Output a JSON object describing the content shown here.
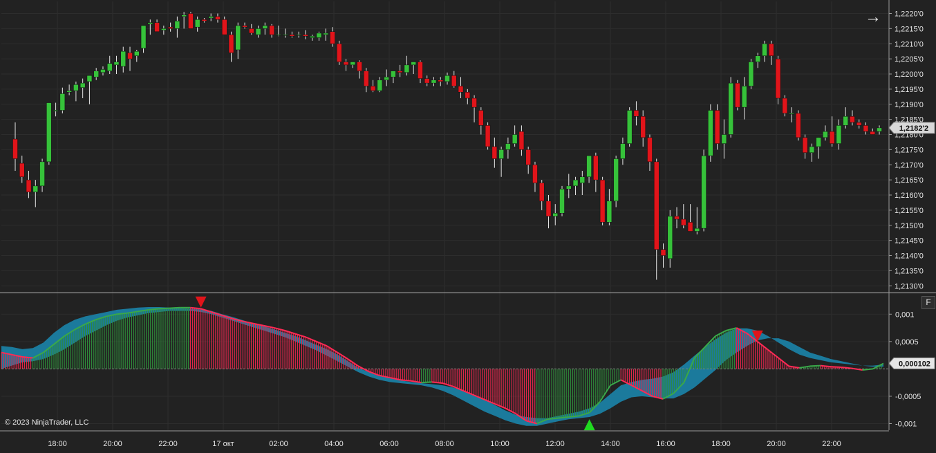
{
  "chart_data": [
    {
      "type": "candlestick",
      "title": "",
      "price_axis_ticks": [
        "1,2130'0",
        "1,2135'0",
        "1,2140'0",
        "1,2145'0",
        "1,2150'0",
        "1,2155'0",
        "1,2160'0",
        "1,2165'0",
        "1,2170'0",
        "1,2175'0",
        "1,2180'0",
        "1,2185'0",
        "1,2190'0",
        "1,2195'0",
        "1,2200'0",
        "1,2205'0",
        "1,2210'0",
        "1,2215'0",
        "1,2220'0"
      ],
      "ylim": [
        1.2128,
        1.2224
      ],
      "last_price_label": "1,2182'2",
      "last_price": 1.21822,
      "time_axis_labels": [
        "18:00",
        "20:00",
        "22:00",
        "17 окт",
        "02:00",
        "04:00",
        "06:00",
        "08:00",
        "10:00",
        "12:00",
        "14:00",
        "16:00",
        "18:00",
        "20:00",
        "22:00"
      ],
      "up_color": "#36c23a",
      "down_color": "#e1141a",
      "ohlc": [
        [
          1.21785,
          1.2184,
          1.2168,
          1.2172
        ],
        [
          1.21705,
          1.2173,
          1.2164,
          1.2166
        ],
        [
          1.2165,
          1.2168,
          1.2159,
          1.2161
        ],
        [
          1.2161,
          1.2165,
          1.2156,
          1.2163
        ],
        [
          1.2163,
          1.2172,
          1.2161,
          1.2171
        ],
        [
          1.2171,
          1.21905,
          1.217,
          1.21905
        ],
        [
          1.2188,
          1.21905,
          1.2186,
          1.2188
        ],
        [
          1.2188,
          1.21955,
          1.2187,
          1.21935
        ],
        [
          1.2194,
          1.21965,
          1.2193,
          1.21945
        ],
        [
          1.21945,
          1.21975,
          1.2191,
          1.21965
        ],
        [
          1.21955,
          1.21985,
          1.2192,
          1.2197
        ],
        [
          1.21975,
          1.21995,
          1.219,
          1.21995
        ],
        [
          1.2199,
          1.2202,
          1.2198,
          1.2201
        ],
        [
          1.22005,
          1.22025,
          1.21995,
          1.22015
        ],
        [
          1.2201,
          1.2206,
          1.22,
          1.22035
        ],
        [
          1.2203,
          1.2206,
          1.22,
          1.2204
        ],
        [
          1.22025,
          1.2209,
          1.22005,
          1.22075
        ],
        [
          1.2207,
          1.2209,
          1.2201,
          1.2205
        ],
        [
          1.2206,
          1.2208,
          1.2204,
          1.22075
        ],
        [
          1.22085,
          1.2216,
          1.2207,
          1.2216
        ],
        [
          1.22165,
          1.2218,
          1.2213,
          1.2217
        ],
        [
          1.2217,
          1.2218,
          1.2214,
          1.2214
        ],
        [
          1.22145,
          1.2216,
          1.2213,
          1.2215
        ],
        [
          1.22155,
          1.2217,
          1.2214,
          1.2215
        ],
        [
          1.2215,
          1.2219,
          1.2212,
          1.22175
        ],
        [
          1.2219,
          1.22205,
          1.2215,
          1.22195
        ],
        [
          1.222,
          1.22205,
          1.2215,
          1.2215
        ],
        [
          1.22155,
          1.2219,
          1.2214,
          1.2218
        ],
        [
          1.2218,
          1.22185,
          1.2217,
          1.22175
        ],
        [
          1.22185,
          1.222,
          1.22175,
          1.2219
        ],
        [
          1.2219,
          1.222,
          1.2217,
          1.2218
        ],
        [
          1.2218,
          1.2219,
          1.2213,
          1.2213
        ],
        [
          1.2213,
          1.2214,
          1.2204,
          1.2207
        ],
        [
          1.2208,
          1.2217,
          1.2205,
          1.2216
        ],
        [
          1.2216,
          1.2217,
          1.2215,
          1.22155
        ],
        [
          1.2215,
          1.22165,
          1.2213,
          1.22135
        ],
        [
          1.2213,
          1.2216,
          1.2212,
          1.2215
        ],
        [
          1.2215,
          1.2217,
          1.2213,
          1.2216
        ],
        [
          1.2216,
          1.22165,
          1.2212,
          1.2213
        ],
        [
          1.2213,
          1.2216,
          1.22125,
          1.2213
        ],
        [
          1.2213,
          1.2215,
          1.2212,
          1.2213
        ],
        [
          1.2213,
          1.2214,
          1.2212,
          1.22125
        ],
        [
          1.2213,
          1.2214,
          1.2212,
          1.2213
        ],
        [
          1.2213,
          1.22145,
          1.22115,
          1.22125
        ],
        [
          1.2212,
          1.2213,
          1.2211,
          1.22125
        ],
        [
          1.2212,
          1.2214,
          1.2211,
          1.22135
        ],
        [
          1.2213,
          1.2215,
          1.2211,
          1.22135
        ],
        [
          1.2214,
          1.22155,
          1.2209,
          1.221
        ],
        [
          1.221,
          1.2211,
          1.2203,
          1.2204
        ],
        [
          1.2204,
          1.2205,
          1.2201,
          1.2203
        ],
        [
          1.2203,
          1.2204,
          1.2202,
          1.2204
        ],
        [
          1.2204,
          1.22045,
          1.21985,
          1.2201
        ],
        [
          1.2201,
          1.2202,
          1.2194,
          1.2196
        ],
        [
          1.2196,
          1.2198,
          1.2194,
          1.21945
        ],
        [
          1.21945,
          1.2199,
          1.2194,
          1.2198
        ],
        [
          1.2198,
          1.22015,
          1.2196,
          1.2199
        ],
        [
          1.2199,
          1.2201,
          1.2197,
          1.2201
        ],
        [
          1.2201,
          1.2203,
          1.2199,
          1.22005
        ],
        [
          1.22005,
          1.2206,
          1.21995,
          1.2203
        ],
        [
          1.2203,
          1.2204,
          1.22,
          1.2204
        ],
        [
          1.2204,
          1.22045,
          1.2197,
          1.21985
        ],
        [
          1.21985,
          1.21995,
          1.2196,
          1.2197
        ],
        [
          1.2197,
          1.2199,
          1.2196,
          1.2198
        ],
        [
          1.2198,
          1.2199,
          1.2196,
          1.21975
        ],
        [
          1.21975,
          1.22005,
          1.21965,
          1.21995
        ],
        [
          1.21995,
          1.2201,
          1.21955,
          1.2196
        ],
        [
          1.2196,
          1.2199,
          1.2192,
          1.2194
        ],
        [
          1.2194,
          1.2195,
          1.219,
          1.2192
        ],
        [
          1.2192,
          1.2193,
          1.2184,
          1.2189
        ],
        [
          1.2188,
          1.2189,
          1.218,
          1.2183
        ],
        [
          1.2183,
          1.2184,
          1.2175,
          1.2176
        ],
        [
          1.2176,
          1.2179,
          1.2169,
          1.2172
        ],
        [
          1.2172,
          1.2176,
          1.2166,
          1.2175
        ],
        [
          1.2175,
          1.2179,
          1.2172,
          1.2177
        ],
        [
          1.2177,
          1.2183,
          1.2176,
          1.218
        ],
        [
          1.2181,
          1.2183,
          1.2173,
          1.2175
        ],
        [
          1.2175,
          1.2176,
          1.2167,
          1.217
        ],
        [
          1.217,
          1.2171,
          1.2161,
          1.2164
        ],
        [
          1.2164,
          1.2165,
          1.2155,
          1.2158
        ],
        [
          1.2158,
          1.216,
          1.2149,
          1.2153
        ],
        [
          1.2153,
          1.2157,
          1.215,
          1.2154
        ],
        [
          1.2154,
          1.2163,
          1.2153,
          1.2162
        ],
        [
          1.2162,
          1.2167,
          1.2159,
          1.2163
        ],
        [
          1.2163,
          1.2166,
          1.216,
          1.2165
        ],
        [
          1.2164,
          1.2168,
          1.216,
          1.2166
        ],
        [
          1.2166,
          1.2173,
          1.2164,
          1.2173
        ],
        [
          1.2173,
          1.2174,
          1.2161,
          1.2165
        ],
        [
          1.2165,
          1.2166,
          1.215,
          1.2151
        ],
        [
          1.2151,
          1.2162,
          1.215,
          1.2158
        ],
        [
          1.2158,
          1.2173,
          1.2156,
          1.2172
        ],
        [
          1.2172,
          1.2179,
          1.217,
          1.2177
        ],
        [
          1.2177,
          1.2189,
          1.2176,
          1.2188
        ],
        [
          1.2188,
          1.2191,
          1.2183,
          1.2186
        ],
        [
          1.2186,
          1.2188,
          1.2176,
          1.2179
        ],
        [
          1.2179,
          1.218,
          1.2168,
          1.2171
        ],
        [
          1.2171,
          1.2172,
          1.2132,
          1.2142
        ],
        [
          1.2142,
          1.2144,
          1.2136,
          1.214
        ],
        [
          1.2139,
          1.2155,
          1.2136,
          1.2153
        ],
        [
          1.2153,
          1.2156,
          1.2149,
          1.2152
        ],
        [
          1.2152,
          1.2157,
          1.2149,
          1.215
        ],
        [
          1.2151,
          1.2157,
          1.2148,
          1.2148
        ],
        [
          1.2148,
          1.2156,
          1.2147,
          1.2149
        ],
        [
          1.2149,
          1.2175,
          1.2148,
          1.2173
        ],
        [
          1.2173,
          1.219,
          1.2171,
          1.2188
        ],
        [
          1.2188,
          1.219,
          1.2175,
          1.2177
        ],
        [
          1.2177,
          1.2185,
          1.2172,
          1.218
        ],
        [
          1.218,
          1.2199,
          1.2179,
          1.2197
        ],
        [
          1.2197,
          1.2198,
          1.2188,
          1.2189
        ],
        [
          1.2189,
          1.2199,
          1.2185,
          1.2196
        ],
        [
          1.2196,
          1.2205,
          1.2195,
          1.2204
        ],
        [
          1.2204,
          1.2207,
          1.2202,
          1.2206
        ],
        [
          1.2206,
          1.2211,
          1.2204,
          1.221
        ],
        [
          1.221,
          1.2211,
          1.2203,
          1.2206
        ],
        [
          1.2205,
          1.2206,
          1.219,
          1.2192
        ],
        [
          1.2192,
          1.2193,
          1.2186,
          1.2187
        ],
        [
          1.2187,
          1.2189,
          1.2184,
          1.2187
        ],
        [
          1.2187,
          1.2188,
          1.2178,
          1.2179
        ],
        [
          1.2179,
          1.218,
          1.2172,
          1.2174
        ],
        [
          1.2174,
          1.2177,
          1.2171,
          1.2176
        ],
        [
          1.2176,
          1.2179,
          1.2172,
          1.2179
        ],
        [
          1.2179,
          1.2183,
          1.2178,
          1.2181
        ],
        [
          1.2181,
          1.2186,
          1.2176,
          1.2177
        ],
        [
          1.2177,
          1.2185,
          1.2175,
          1.2183
        ],
        [
          1.2183,
          1.2189,
          1.2182,
          1.2186
        ],
        [
          1.2186,
          1.2188,
          1.2183,
          1.2184
        ],
        [
          1.2184,
          1.2185,
          1.2182,
          1.2183
        ],
        [
          1.2183,
          1.2184,
          1.218,
          1.2181
        ],
        [
          1.2181,
          1.2182,
          1.218,
          1.218
        ],
        [
          1.2181,
          1.2183,
          1.218,
          1.21822
        ]
      ]
    },
    {
      "type": "oscillator",
      "title": "",
      "axis_ticks": [
        "0,001",
        "0,0005",
        "-0,0005",
        "-0,001"
      ],
      "tick_values": [
        0.001,
        0.0005,
        -0.0005,
        -0.001
      ],
      "ylim": [
        -0.00112,
        0.00137
      ],
      "zero_line": 0,
      "last_value_label": "0,000102",
      "last_value": 0.000102,
      "up_color": "#2e8b3a",
      "down_color": "#e0254a",
      "band_color": "#1b7fa3",
      "signal_markers": [
        {
          "index": 19,
          "direction": "down",
          "value": 0.00112,
          "color": "#e1141a"
        },
        {
          "index": 56,
          "direction": "up",
          "value": -0.00092,
          "color": "#20d820"
        },
        {
          "index": 72,
          "direction": "down",
          "value": 0.0005,
          "color": "#e1141a"
        }
      ],
      "histogram": [
        0.0003,
        0.00026,
        0.00022,
        0.0002,
        0.0003,
        0.00045,
        0.0006,
        0.00072,
        0.00082,
        0.0009,
        0.00096,
        0.001,
        0.00102,
        0.00105,
        0.00108,
        0.0011,
        0.00111,
        0.00112,
        0.00112,
        0.0011,
        0.00104,
        0.00098,
        0.00092,
        0.00087,
        0.00083,
        0.00079,
        0.00075,
        0.0007,
        0.00064,
        0.00058,
        0.0005,
        0.00042,
        0.0003,
        0.00018,
        5e-05,
        -5e-05,
        -0.00012,
        -0.00016,
        -0.0002,
        -0.00022,
        -0.00025,
        -0.00024,
        -0.00026,
        -0.00032,
        -0.0004,
        -0.00048,
        -0.00056,
        -0.00064,
        -0.00072,
        -0.00082,
        -0.00095,
        -0.001,
        -0.00092,
        -0.0009,
        -0.00088,
        -0.00086,
        -0.0008,
        -0.0006,
        -0.0003,
        -0.0002,
        -0.0003,
        -0.0004,
        -0.0005,
        -0.00055,
        -0.00045,
        -0.00025,
        0.0002,
        0.0004,
        0.0006,
        0.0007,
        0.00075,
        0.00065,
        0.0005,
        0.00035,
        0.0002,
        5e-05,
        2e-05,
        5e-05,
        6e-05,
        4e-05,
        3e-05,
        1e-05,
        -2e-05,
        0.0,
        0.0001
      ],
      "band_upper": [
        0.00042,
        0.0004,
        0.00036,
        0.00038,
        0.00048,
        0.00066,
        0.0008,
        0.0009,
        0.00096,
        0.001,
        0.00104,
        0.00108,
        0.0011,
        0.00112,
        0.00113,
        0.00113,
        0.00112,
        0.00111,
        0.0011,
        0.00109,
        0.00106,
        0.001,
        0.00095,
        0.00089,
        0.00083,
        0.00078,
        0.00072,
        0.00066,
        0.0006,
        0.00052,
        0.00044,
        0.00036,
        0.00026,
        0.00014,
        2e-05,
        -6e-05,
        -0.00012,
        -0.00017,
        -0.00021,
        -0.00024,
        -0.00026,
        -0.00028,
        -0.0003,
        -0.00034,
        -0.0004,
        -0.00047,
        -0.00056,
        -0.00066,
        -0.00076,
        -0.00084,
        -0.00088,
        -0.0009,
        -0.0009,
        -0.00086,
        -0.00082,
        -0.00078,
        -0.00072,
        -0.00062,
        -0.00046,
        -0.0003,
        -0.00024,
        -0.0002,
        -0.00018,
        -0.00014,
        -6e-05,
        8e-05,
        0.00024,
        0.0004,
        0.00054,
        0.00066,
        0.00074,
        0.00074,
        0.0007,
        0.0006,
        0.00048,
        0.00036,
        0.00026,
        0.0002,
        0.00016,
        0.00012,
        0.0001,
        8e-05,
        6e-05,
        6e-05,
        8e-05
      ],
      "band_lower": [
        0.0,
        6e-05,
        0.00012,
        0.00014,
        0.00018,
        0.00026,
        0.00036,
        0.00048,
        0.0006,
        0.0007,
        0.0008,
        0.00088,
        0.00094,
        0.00098,
        0.00102,
        0.00104,
        0.00106,
        0.00106,
        0.00106,
        0.00104,
        0.001,
        0.00094,
        0.00088,
        0.00082,
        0.00076,
        0.0007,
        0.00064,
        0.00058,
        0.0005,
        0.00042,
        0.00034,
        0.00024,
        0.00014,
        4e-05,
        -6e-05,
        -0.00014,
        -0.0002,
        -0.00024,
        -0.00026,
        -0.00028,
        -0.0003,
        -0.00034,
        -0.0004,
        -0.00048,
        -0.00058,
        -0.00068,
        -0.00078,
        -0.00086,
        -0.00094,
        -0.001,
        -0.00104,
        -0.00104,
        -0.001,
        -0.00096,
        -0.00092,
        -0.0009,
        -0.00088,
        -0.00082,
        -0.00072,
        -0.0006,
        -0.00052,
        -0.0005,
        -0.00052,
        -0.00054,
        -0.00054,
        -0.00046,
        -0.00034,
        -0.00018,
        -2e-05,
        0.00016,
        0.0003,
        0.00042,
        0.00052,
        0.00056,
        0.00056,
        0.0005,
        0.0004,
        0.0003,
        0.00024,
        0.00018,
        0.00014,
        0.0001,
        6e-05,
        4e-05,
        4e-05
      ]
    }
  ],
  "ui": {
    "copyright": "© 2023 NinjaTrader, LLC",
    "nav_arrow_icon": "arrow-right-icon",
    "nav_arrow_glyph": "→",
    "f_button_label": "F",
    "background": "#222222",
    "grid_color": "#2e2e2e"
  }
}
